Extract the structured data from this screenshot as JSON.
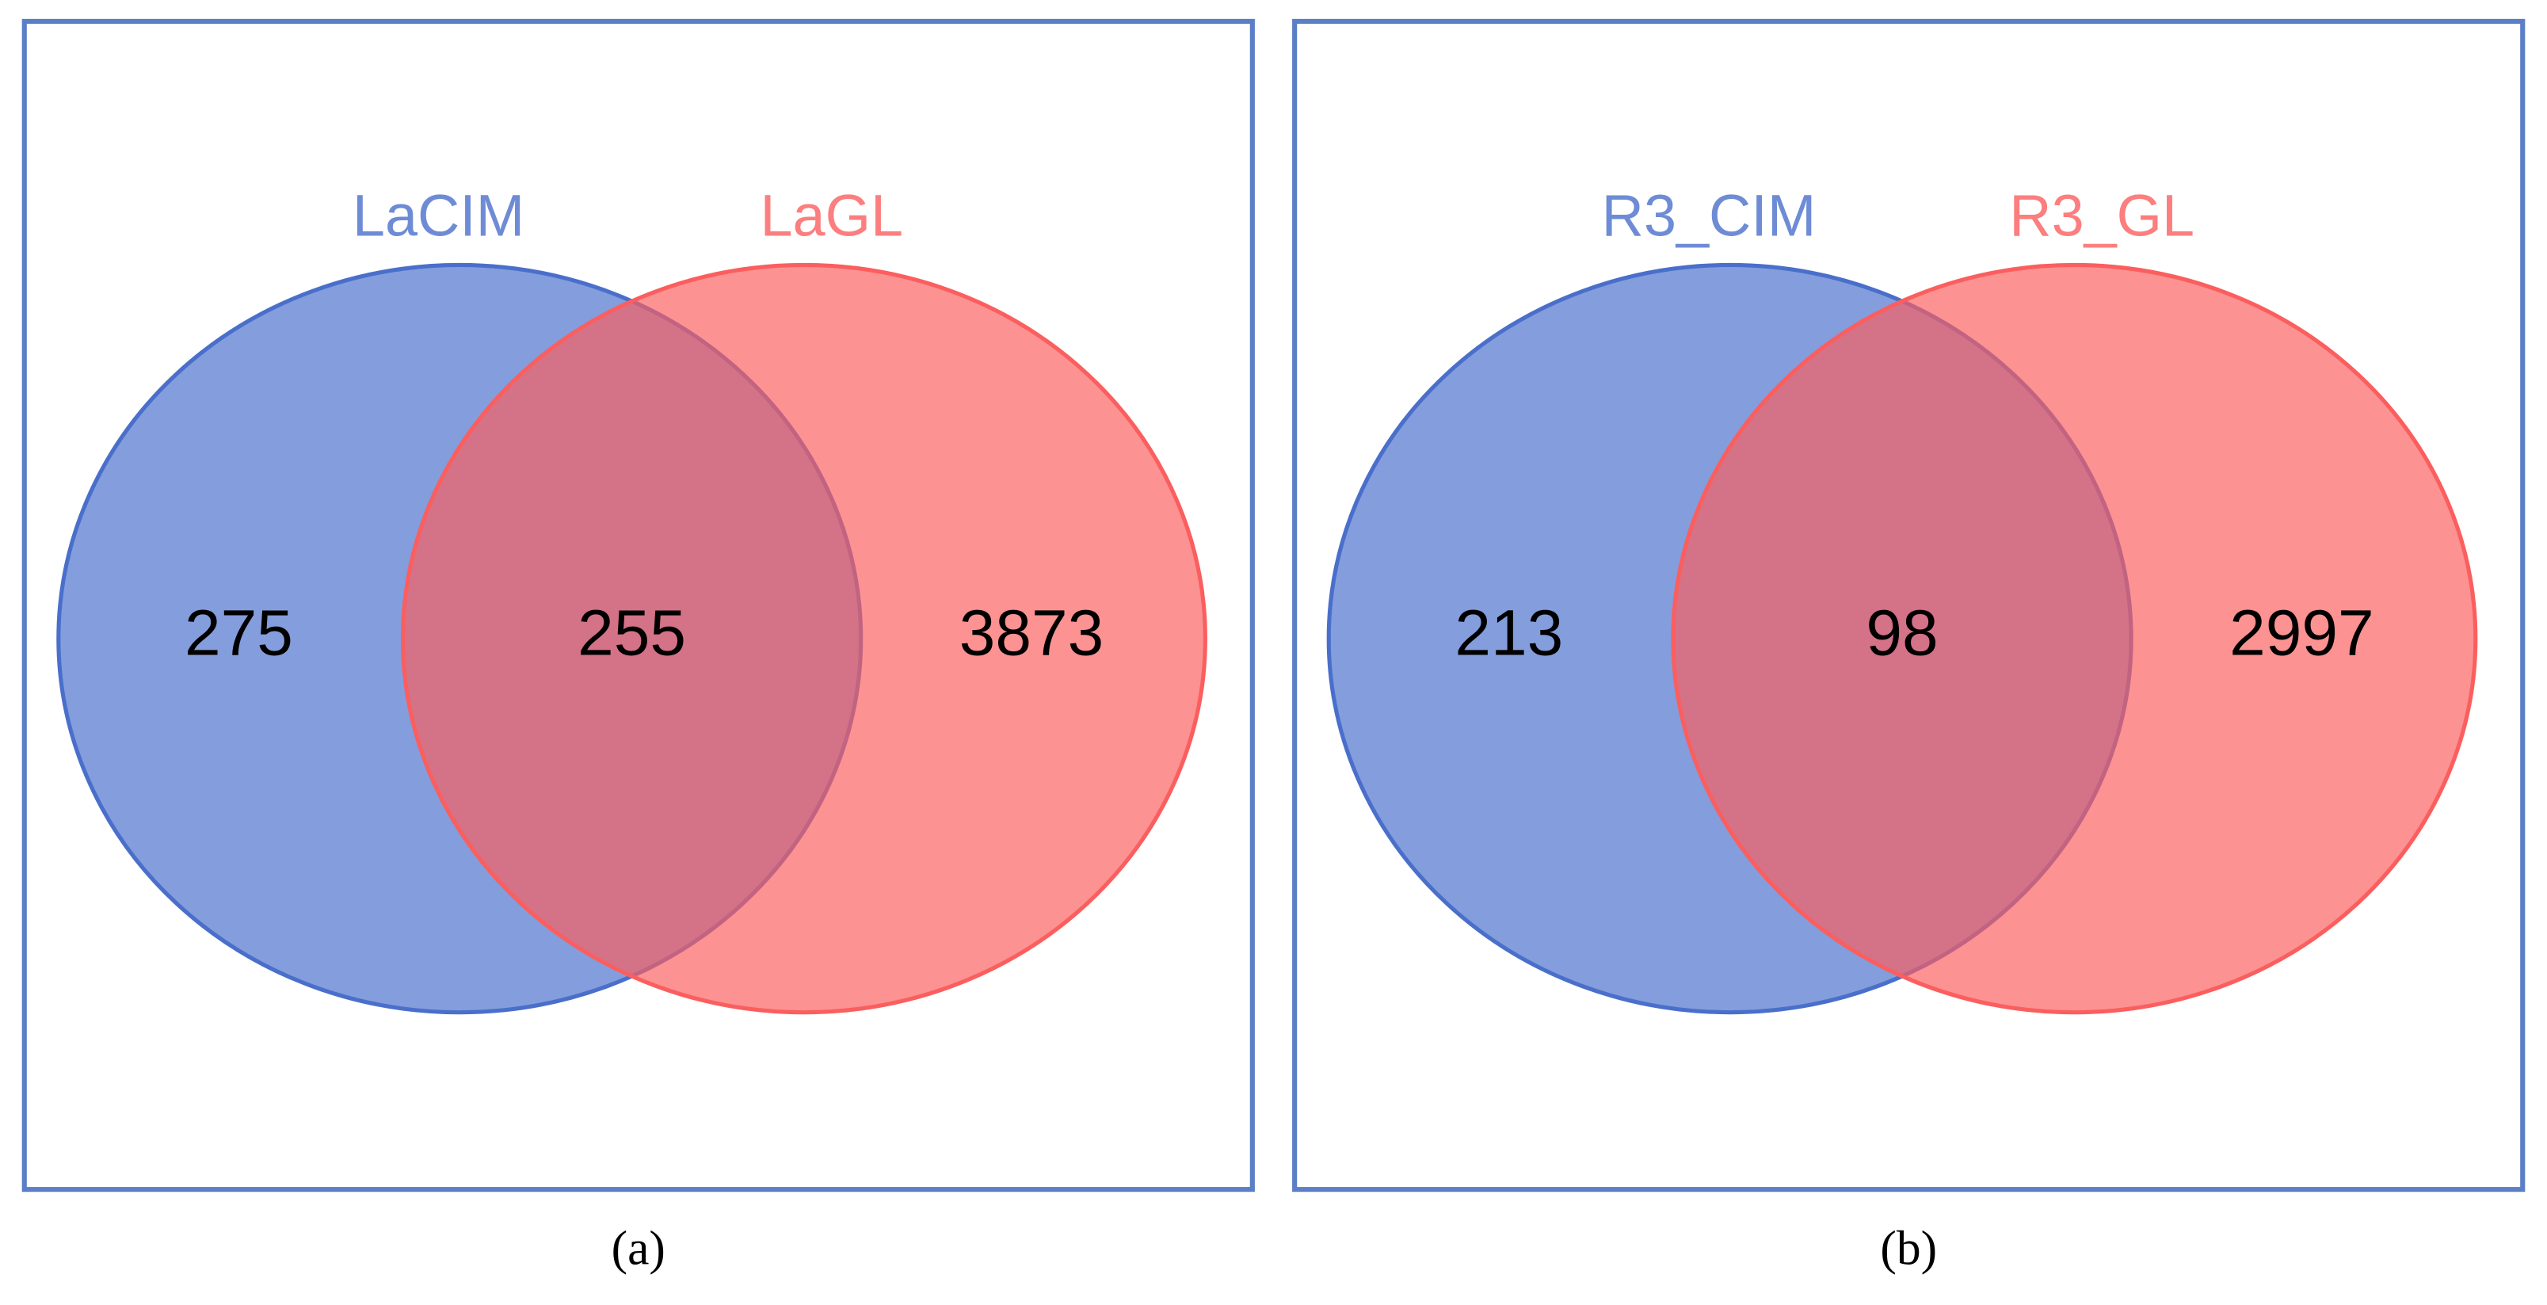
{
  "chart_data": [
    {
      "type": "venn",
      "panel_label": "(a)",
      "sets": [
        {
          "name": "LaCIM",
          "color": "#4a6fcb"
        },
        {
          "name": "LaGL",
          "color": "#fb5e5e"
        }
      ],
      "values": [
        275,
        255,
        3873
      ]
    },
    {
      "type": "venn",
      "panel_label": "(b)",
      "sets": [
        {
          "name": "R3_CIM",
          "color": "#4a6fcb"
        },
        {
          "name": "R3_GL",
          "color": "#fb5e5e"
        }
      ],
      "values": [
        213,
        98,
        2997
      ]
    }
  ]
}
